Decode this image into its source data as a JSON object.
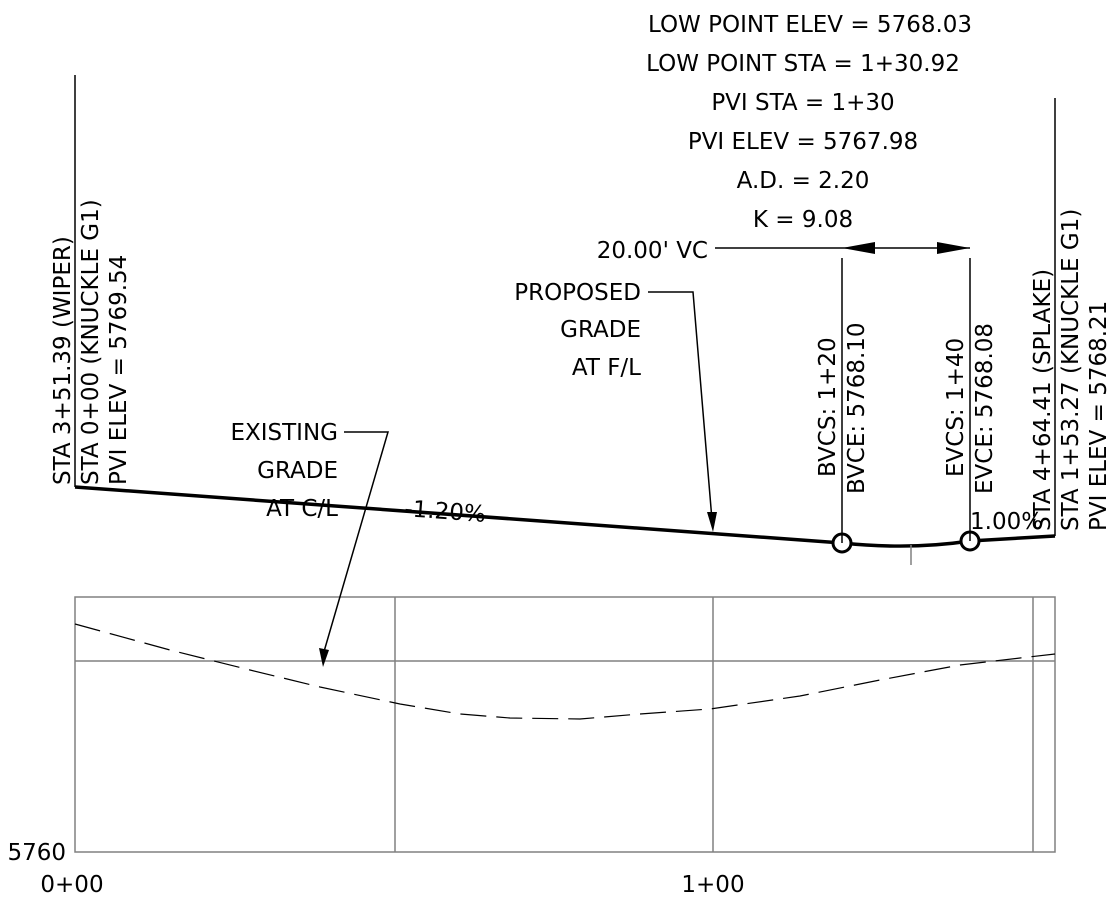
{
  "curve_info": {
    "low_point_elev": "LOW POINT ELEV = 5768.03",
    "low_point_sta": "LOW POINT STA = 1+30.92",
    "pvi_sta": "PVI STA = 1+30",
    "pvi_elev": "PVI ELEV = 5767.98",
    "ad": "A.D. = 2.20",
    "k": "K = 9.08"
  },
  "vc_label": "20.00' VC",
  "left_station": {
    "line1": "STA 3+51.39 (WIPER)",
    "line2": "STA 0+00 (KNUCKLE G1)",
    "line3": "PVI ELEV = 5769.54"
  },
  "right_station": {
    "line1": "STA 4+64.41 (SPLAKE)",
    "line2": "STA 1+53.27 (KNUCKLE G1)",
    "line3": "PVI ELEV = 5768.21"
  },
  "bvc": {
    "station": "BVCS: 1+20",
    "elevation": "BVCE: 5768.10"
  },
  "evc": {
    "station": "EVCS: 1+40",
    "elevation": "EVCE: 5768.08"
  },
  "existing_grade_label": [
    "EXISTING",
    "GRADE",
    "AT C/L"
  ],
  "proposed_grade_label": [
    "PROPOSED",
    "GRADE",
    "AT F/L"
  ],
  "grades": {
    "left": "-1.20%",
    "right": "1.00%"
  },
  "axis": {
    "y_label": "5760",
    "x_labels": [
      "0+00",
      "1+00"
    ]
  },
  "colors": {
    "line": "#000000",
    "grid": "#808080"
  }
}
